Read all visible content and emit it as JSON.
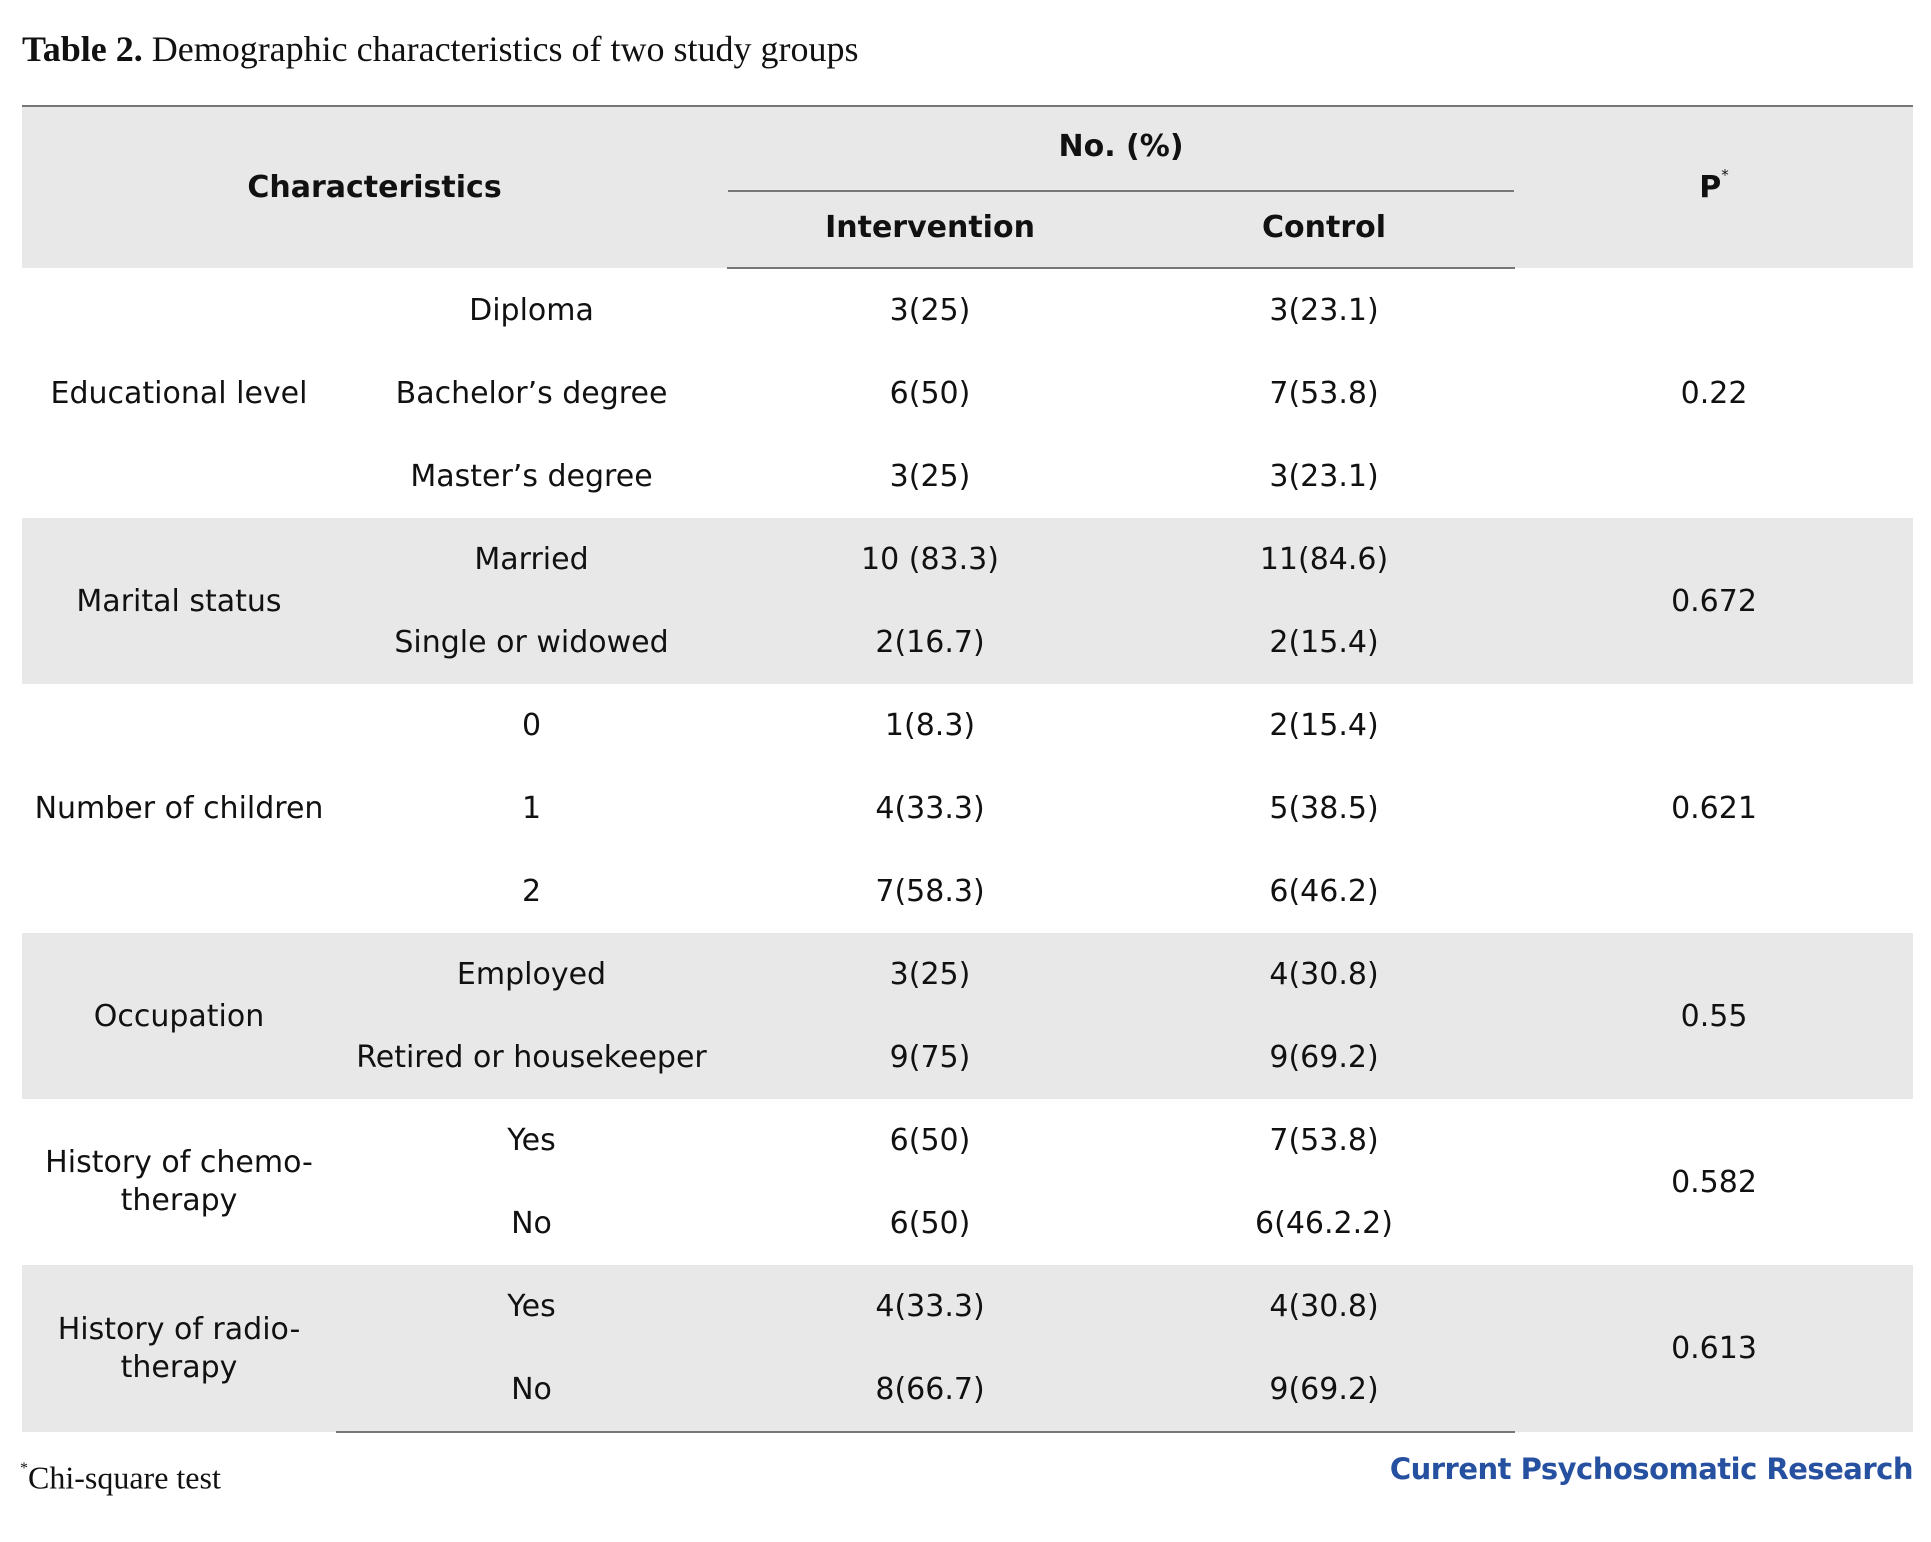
{
  "caption": {
    "label": "Table 2.",
    "text": "Demographic characteristics of two study groups"
  },
  "header": {
    "characteristics": "Characteristics",
    "no_pct": "No. (%)",
    "intervention": "Intervention",
    "control": "Control",
    "p": "P",
    "p_mark": "*"
  },
  "groups": [
    {
      "name": "Educational level",
      "p": "0.22",
      "rows": [
        {
          "category": "Diploma",
          "intervention": "3(25)",
          "control": "3(23.1)"
        },
        {
          "category": "Bachelor’s degree",
          "intervention": "6(50)",
          "control": "7(53.8)"
        },
        {
          "category": "Master’s degree",
          "intervention": "3(25)",
          "control": "3(23.1)"
        }
      ]
    },
    {
      "name": "Marital status",
      "p": "0.672",
      "rows": [
        {
          "category": "Married",
          "intervention": "10 (83.3)",
          "control": "11(84.6)"
        },
        {
          "category": "Single or widowed",
          "intervention": "2(16.7)",
          "control": "2(15.4)"
        }
      ]
    },
    {
      "name": "Number of children",
      "p": "0.621",
      "rows": [
        {
          "category": "0",
          "intervention": "1(8.3)",
          "control": "2(15.4)"
        },
        {
          "category": "1",
          "intervention": "4(33.3)",
          "control": "5(38.5)"
        },
        {
          "category": "2",
          "intervention": "7(58.3)",
          "control": "6(46.2)"
        }
      ]
    },
    {
      "name": "Occupation",
      "p": "0.55",
      "rows": [
        {
          "category": "Employed",
          "intervention": "3(25)",
          "control": "4(30.8)"
        },
        {
          "category": "Retired or housekeeper",
          "intervention": "9(75)",
          "control": "9(69.2)"
        }
      ]
    },
    {
      "name_lines": [
        "History of chemo-",
        "therapy"
      ],
      "p": "0.582",
      "rows": [
        {
          "category": "Yes",
          "intervention": "6(50)",
          "control": "7(53.8)"
        },
        {
          "category": "No",
          "intervention": "6(50)",
          "control": "6(46.2.2)"
        }
      ]
    },
    {
      "name_lines": [
        "History of radio-",
        "therapy"
      ],
      "p": "0.613",
      "rows": [
        {
          "category": "Yes",
          "intervention": "4(33.3)",
          "control": "4(30.8)"
        },
        {
          "category": "No",
          "intervention": "8(66.7)",
          "control": "9(69.2)"
        }
      ]
    }
  ],
  "footnote": {
    "mark": "*",
    "text": "Chi-square test"
  },
  "journal": "Current Psychosomatic Research"
}
